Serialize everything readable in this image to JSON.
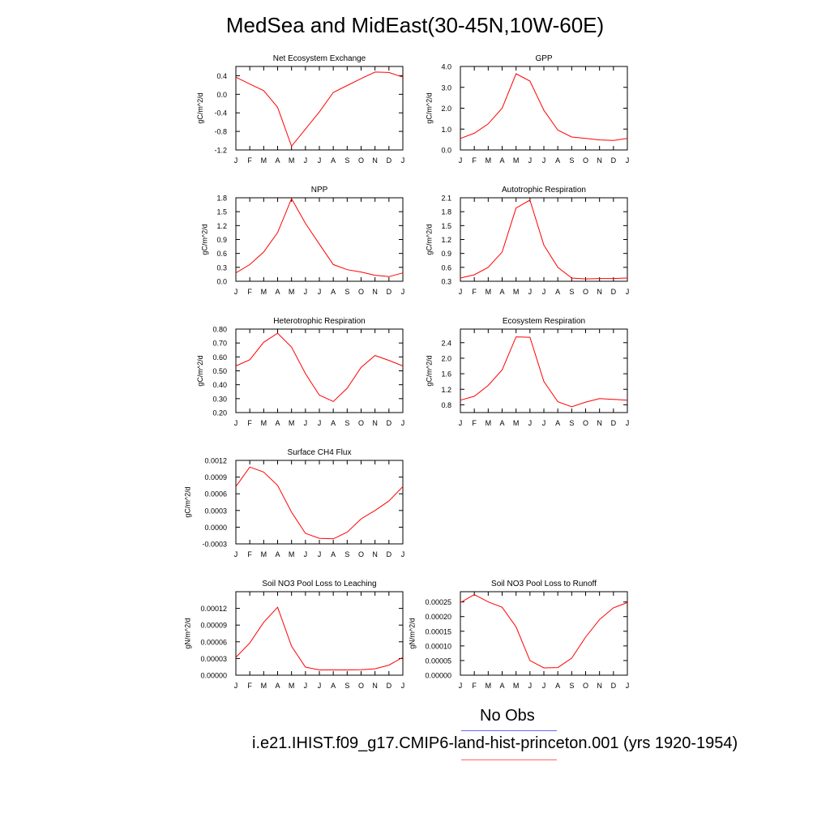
{
  "title": "MedSea and MidEast(30-45N,10W-60E)",
  "legend": {
    "obs_label": "No Obs",
    "obs_color": "#6666ff",
    "model_label": "i.e21.IHIST.f09_g17.CMIP6-land-hist-princeton.001 (yrs 1920-1954)",
    "model_color": "#ff6666"
  },
  "line_color": "#ff0000",
  "chart_data": [
    {
      "type": "line",
      "title": "Net Ecosystem Exchange",
      "ylabel": "gC/m^2/d",
      "categories": [
        "J",
        "F",
        "M",
        "A",
        "M",
        "J",
        "J",
        "A",
        "S",
        "O",
        "N",
        "D",
        "J"
      ],
      "values": [
        0.37,
        0.22,
        0.08,
        -0.28,
        -1.12,
        -0.75,
        -0.38,
        0.04,
        0.19,
        0.34,
        0.48,
        0.47,
        0.37
      ],
      "ylim": [
        -1.2,
        0.6
      ],
      "yticks": [
        "-1.2",
        "-0.8",
        "-0.4",
        "0.0",
        "0.4"
      ]
    },
    {
      "type": "line",
      "title": "GPP",
      "ylabel": "gC/m^2/d",
      "categories": [
        "J",
        "F",
        "M",
        "A",
        "M",
        "J",
        "J",
        "A",
        "S",
        "O",
        "N",
        "D",
        "J"
      ],
      "values": [
        0.55,
        0.8,
        1.25,
        2.0,
        3.65,
        3.3,
        1.9,
        0.95,
        0.62,
        0.55,
        0.48,
        0.46,
        0.55
      ],
      "ylim": [
        0.0,
        4.0
      ],
      "yticks": [
        "0.0",
        "1.0",
        "2.0",
        "3.0",
        "4.0"
      ]
    },
    {
      "type": "line",
      "title": "NPP",
      "ylabel": "gC/m^2/d",
      "categories": [
        "J",
        "F",
        "M",
        "A",
        "M",
        "J",
        "J",
        "A",
        "S",
        "O",
        "N",
        "D",
        "J"
      ],
      "values": [
        0.18,
        0.36,
        0.63,
        1.05,
        1.78,
        1.25,
        0.8,
        0.36,
        0.25,
        0.2,
        0.13,
        0.1,
        0.18
      ],
      "ylim": [
        0.0,
        1.8
      ],
      "yticks": [
        "0.0",
        "0.3",
        "0.6",
        "0.9",
        "1.2",
        "1.5",
        "1.8"
      ]
    },
    {
      "type": "line",
      "title": "Autotrophic Respiration",
      "ylabel": "gC/m^2/d",
      "categories": [
        "J",
        "F",
        "M",
        "A",
        "M",
        "J",
        "J",
        "A",
        "S",
        "O",
        "N",
        "D",
        "J"
      ],
      "values": [
        0.37,
        0.44,
        0.6,
        0.93,
        1.88,
        2.05,
        1.08,
        0.6,
        0.37,
        0.35,
        0.36,
        0.36,
        0.37
      ],
      "ylim": [
        0.3,
        2.1
      ],
      "yticks": [
        "0.3",
        "0.6",
        "0.9",
        "1.2",
        "1.5",
        "1.8",
        "2.1"
      ]
    },
    {
      "type": "line",
      "title": "Heterotrophic Respiration",
      "ylabel": "gC/m^2/d",
      "categories": [
        "J",
        "F",
        "M",
        "A",
        "M",
        "J",
        "J",
        "A",
        "S",
        "O",
        "N",
        "D",
        "J"
      ],
      "values": [
        0.535,
        0.58,
        0.705,
        0.77,
        0.67,
        0.48,
        0.325,
        0.28,
        0.375,
        0.525,
        0.61,
        0.575,
        0.535
      ],
      "ylim": [
        0.2,
        0.8
      ],
      "yticks": [
        "0.20",
        "0.30",
        "0.40",
        "0.50",
        "0.60",
        "0.70",
        "0.80"
      ]
    },
    {
      "type": "line",
      "title": "Ecosystem Respiration",
      "ylabel": "gC/m^2/d",
      "categories": [
        "J",
        "F",
        "M",
        "A",
        "M",
        "J",
        "J",
        "A",
        "S",
        "O",
        "N",
        "D",
        "J"
      ],
      "values": [
        0.92,
        1.02,
        1.3,
        1.7,
        2.55,
        2.54,
        1.4,
        0.88,
        0.75,
        0.87,
        0.96,
        0.94,
        0.92
      ],
      "ylim": [
        0.6,
        2.75
      ],
      "yticks": [
        "0.8",
        "1.2",
        "1.6",
        "2.0",
        "2.4"
      ]
    },
    {
      "type": "line",
      "title": "Surface CH4 Flux",
      "ylabel": "gC/m^2/d",
      "categories": [
        "J",
        "F",
        "M",
        "A",
        "M",
        "J",
        "J",
        "A",
        "S",
        "O",
        "N",
        "D",
        "J"
      ],
      "values": [
        0.00073,
        0.00108,
        0.00099,
        0.00075,
        0.00027,
        -0.00011,
        -0.0002,
        -0.00021,
        -9e-05,
        0.00015,
        0.0003,
        0.00047,
        0.00073
      ],
      "ylim": [
        -0.0003,
        0.0012
      ],
      "yticks": [
        "-0.0003",
        "0.0000",
        "0.0003",
        "0.0006",
        "0.0009",
        "0.0012"
      ]
    },
    {
      "type": "line",
      "title": "Soil NO3 Pool Loss to Leaching",
      "ylabel": "gN/m^2/d",
      "categories": [
        "J",
        "F",
        "M",
        "A",
        "M",
        "J",
        "J",
        "A",
        "S",
        "O",
        "N",
        "D",
        "J"
      ],
      "values": [
        3.2e-05,
        5.8e-05,
        9.5e-05,
        0.000122,
        5.2e-05,
        1.45e-05,
        9.5e-06,
        9.5e-06,
        9.5e-06,
        9.7e-06,
        1.15e-05,
        1.8e-05,
        3.2e-05
      ],
      "ylim": [
        0.0,
        0.00015
      ],
      "yticks": [
        "0.00000",
        "0.00003",
        "0.00006",
        "0.00009",
        "0.00012"
      ]
    },
    {
      "type": "line",
      "title": "Soil NO3 Pool Loss to Runoff",
      "ylabel": "gN/m^2/d",
      "categories": [
        "J",
        "F",
        "M",
        "A",
        "M",
        "J",
        "J",
        "A",
        "S",
        "O",
        "N",
        "D",
        "J"
      ],
      "values": [
        0.000248,
        0.000275,
        0.00025,
        0.000232,
        0.000165,
        5e-05,
        2.5e-05,
        2.6e-05,
        5.8e-05,
        0.00013,
        0.00019,
        0.00023,
        0.000248
      ],
      "ylim": [
        0.0,
        0.000285
      ],
      "yticks": [
        "0.00000",
        "0.00005",
        "0.00010",
        "0.00015",
        "0.00020",
        "0.00025"
      ]
    }
  ]
}
